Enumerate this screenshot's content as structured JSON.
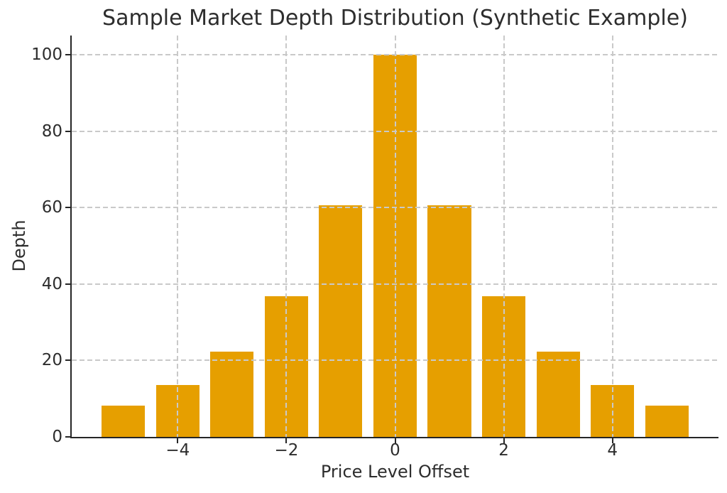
{
  "chart_data": {
    "type": "bar",
    "title": "Sample Market Depth Distribution (Synthetic Example)",
    "xlabel": "Price Level Offset",
    "ylabel": "Depth",
    "categories": [
      -5,
      -4,
      -3,
      -2,
      -1,
      0,
      1,
      2,
      3,
      4,
      5
    ],
    "values": [
      8.21,
      13.53,
      22.31,
      36.79,
      60.65,
      100.0,
      60.65,
      36.79,
      22.31,
      13.53,
      8.21
    ],
    "bar_width": 0.8,
    "x_tick_values": [
      -4,
      -2,
      0,
      2,
      4
    ],
    "x_tick_labels": [
      "−4",
      "−2",
      "0",
      "2",
      "4"
    ],
    "y_tick_values": [
      0,
      20,
      40,
      60,
      80,
      100
    ],
    "y_tick_labels": [
      "0",
      "20",
      "40",
      "60",
      "80",
      "100"
    ],
    "xlim": [
      -5.95,
      5.95
    ],
    "ylim": [
      0,
      105
    ],
    "grid": "both",
    "grid_style": "dashed",
    "grid_above_bars": true,
    "legend": "none",
    "colors": {
      "bar": "#E69F00",
      "grid": "#c9c9c9",
      "axis": "#262626",
      "text": "#2d2d2d",
      "background": "#ffffff"
    }
  }
}
